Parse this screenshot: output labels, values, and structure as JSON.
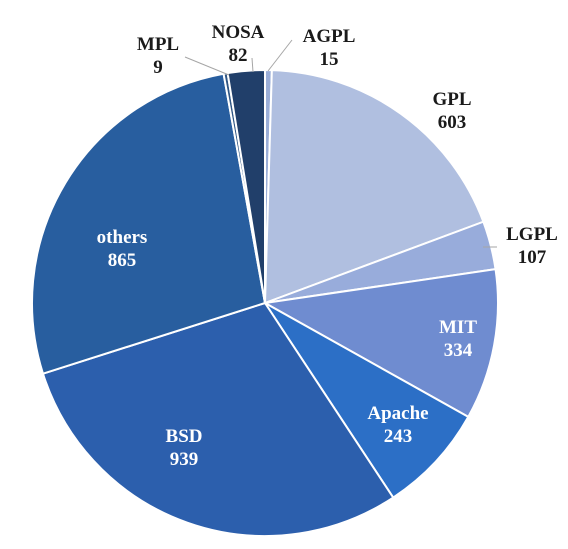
{
  "chart_data": {
    "type": "pie",
    "title": "",
    "slices": [
      {
        "label": "AGPL",
        "value": 15,
        "value_text": "15",
        "color": "#9aaed8",
        "label_outside": true
      },
      {
        "label": "GPL",
        "value": 603,
        "value_text": "603",
        "color": "#b0bfe0",
        "label_outside": true
      },
      {
        "label": "LGPL",
        "value": 107,
        "value_text": "107",
        "color": "#98acdb",
        "label_outside": true
      },
      {
        "label": "MIT",
        "value": 334,
        "value_text": "334",
        "color": "#6f8cd0",
        "label_outside": false
      },
      {
        "label": "Apache",
        "value": 243,
        "value_text": "243",
        "color": "#2c6fc6",
        "label_outside": false
      },
      {
        "label": "BSD",
        "value": 939,
        "value_text": "939",
        "color": "#2c5fad",
        "label_outside": false
      },
      {
        "label": "others",
        "value": 865,
        "value_text": "865",
        "color": "#285e9f",
        "label_outside": false
      },
      {
        "label": "MPL",
        "value": 9,
        "value_text": "9",
        "color": "#2f5685",
        "label_outside": true
      },
      {
        "label": "NOSA",
        "value": 82,
        "value_text": "82",
        "color": "#213f6a",
        "label_outside": true
      }
    ],
    "start_angle_note": "starts at 12 o'clock, clockwise",
    "legend": "none",
    "data_labels": "category name and value"
  }
}
